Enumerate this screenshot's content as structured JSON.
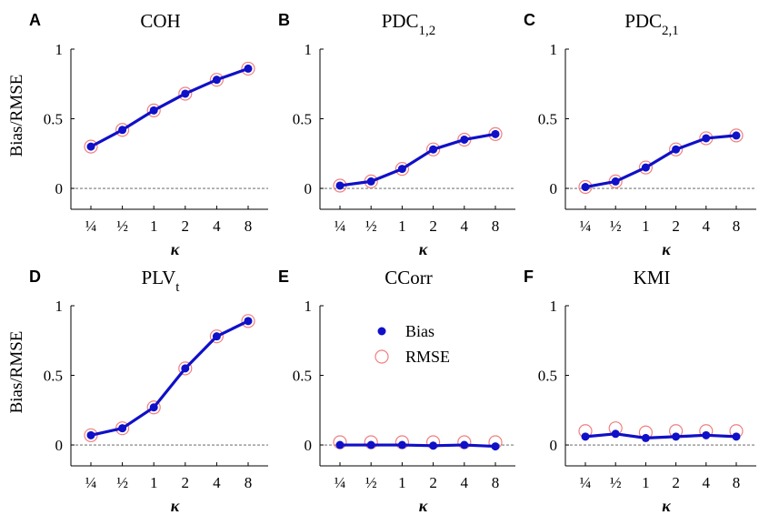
{
  "ylabel": "Bias/RMSE",
  "xlabel": "κ",
  "legend": {
    "bias": "Bias",
    "rmse": "RMSE"
  },
  "colors": {
    "bias": "#1010c8",
    "rmse": "#f08080",
    "axis": "#000000",
    "zero_line": "#555555"
  },
  "chart_data": [
    {
      "type": "line",
      "panel": "A",
      "title": "COH",
      "title_sub": "",
      "categories": [
        "¼",
        "½",
        "1",
        "2",
        "4",
        "8"
      ],
      "yticks": [
        "0",
        "0.5",
        "1"
      ],
      "ylim": [
        -0.15,
        1
      ],
      "grid": false,
      "series": [
        {
          "name": "Bias",
          "values": [
            0.3,
            0.42,
            0.56,
            0.68,
            0.78,
            0.86
          ]
        },
        {
          "name": "RMSE",
          "values": [
            0.3,
            0.42,
            0.56,
            0.68,
            0.78,
            0.86
          ]
        }
      ]
    },
    {
      "type": "line",
      "panel": "B",
      "title": "PDC",
      "title_sub": "1,2",
      "categories": [
        "¼",
        "½",
        "1",
        "2",
        "4",
        "8"
      ],
      "yticks": [
        "0",
        "0.5",
        "1"
      ],
      "ylim": [
        -0.15,
        1
      ],
      "grid": false,
      "series": [
        {
          "name": "Bias",
          "values": [
            0.02,
            0.05,
            0.14,
            0.28,
            0.35,
            0.39
          ]
        },
        {
          "name": "RMSE",
          "values": [
            0.02,
            0.05,
            0.14,
            0.28,
            0.35,
            0.39
          ]
        }
      ]
    },
    {
      "type": "line",
      "panel": "C",
      "title": "PDC",
      "title_sub": "2,1",
      "categories": [
        "¼",
        "½",
        "1",
        "2",
        "4",
        "8"
      ],
      "yticks": [
        "0",
        "0.5",
        "1"
      ],
      "ylim": [
        -0.15,
        1
      ],
      "grid": false,
      "series": [
        {
          "name": "Bias",
          "values": [
            0.01,
            0.05,
            0.15,
            0.28,
            0.36,
            0.38
          ]
        },
        {
          "name": "RMSE",
          "values": [
            0.01,
            0.05,
            0.15,
            0.28,
            0.36,
            0.38
          ]
        }
      ]
    },
    {
      "type": "line",
      "panel": "D",
      "title": "PLV",
      "title_sub": "t",
      "categories": [
        "¼",
        "½",
        "1",
        "2",
        "4",
        "8"
      ],
      "yticks": [
        "0",
        "0.5",
        "1"
      ],
      "ylim": [
        -0.15,
        1
      ],
      "grid": false,
      "series": [
        {
          "name": "Bias",
          "values": [
            0.07,
            0.12,
            0.27,
            0.55,
            0.78,
            0.89
          ]
        },
        {
          "name": "RMSE",
          "values": [
            0.07,
            0.12,
            0.27,
            0.55,
            0.78,
            0.89
          ]
        }
      ]
    },
    {
      "type": "line",
      "panel": "E",
      "title": "CCorr",
      "title_sub": "",
      "categories": [
        "¼",
        "½",
        "1",
        "2",
        "4",
        "8"
      ],
      "yticks": [
        "0",
        "0.5",
        "1"
      ],
      "ylim": [
        -0.15,
        1
      ],
      "grid": false,
      "series": [
        {
          "name": "Bias",
          "values": [
            0.0,
            0.0,
            0.0,
            -0.005,
            0.0,
            -0.01
          ]
        },
        {
          "name": "RMSE",
          "values": [
            0.02,
            0.02,
            0.02,
            0.02,
            0.02,
            0.02
          ]
        }
      ]
    },
    {
      "type": "line",
      "panel": "F",
      "title": "KMI",
      "title_sub": "",
      "categories": [
        "¼",
        "½",
        "1",
        "2",
        "4",
        "8"
      ],
      "yticks": [
        "0",
        "0.5",
        "1"
      ],
      "ylim": [
        -0.15,
        1
      ],
      "grid": false,
      "series": [
        {
          "name": "Bias",
          "values": [
            0.06,
            0.08,
            0.05,
            0.06,
            0.07,
            0.06
          ]
        },
        {
          "name": "RMSE",
          "values": [
            0.1,
            0.12,
            0.09,
            0.1,
            0.1,
            0.1
          ]
        }
      ]
    }
  ]
}
